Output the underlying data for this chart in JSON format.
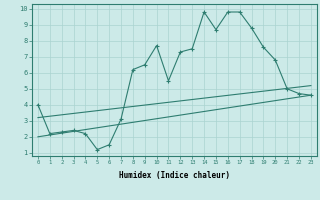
{
  "xlabel": "Humidex (Indice chaleur)",
  "xlim": [
    -0.5,
    23.5
  ],
  "ylim": [
    0.8,
    10.3
  ],
  "xticks": [
    0,
    1,
    2,
    3,
    4,
    5,
    6,
    7,
    8,
    9,
    10,
    11,
    12,
    13,
    14,
    15,
    16,
    17,
    18,
    19,
    20,
    21,
    22,
    23
  ],
  "yticks": [
    1,
    2,
    3,
    4,
    5,
    6,
    7,
    8,
    9,
    10
  ],
  "bg_color": "#cceae8",
  "line_color": "#2e7d70",
  "grid_color": "#aad4d0",
  "line1_x": [
    0,
    1,
    2,
    3,
    4,
    5,
    6,
    7,
    8,
    9,
    10,
    11,
    12,
    13,
    14,
    15,
    16,
    17,
    18,
    19,
    20,
    21,
    22,
    23
  ],
  "line1_y": [
    4.0,
    2.2,
    2.3,
    2.4,
    2.2,
    1.2,
    1.5,
    3.1,
    6.2,
    6.5,
    7.7,
    5.5,
    7.3,
    7.5,
    9.8,
    8.7,
    9.8,
    9.8,
    8.8,
    7.6,
    6.8,
    5.0,
    4.7,
    4.6
  ],
  "line2_x": [
    0,
    23
  ],
  "line2_y": [
    2.0,
    4.6
  ],
  "line3_x": [
    0,
    23
  ],
  "line3_y": [
    3.2,
    5.2
  ]
}
